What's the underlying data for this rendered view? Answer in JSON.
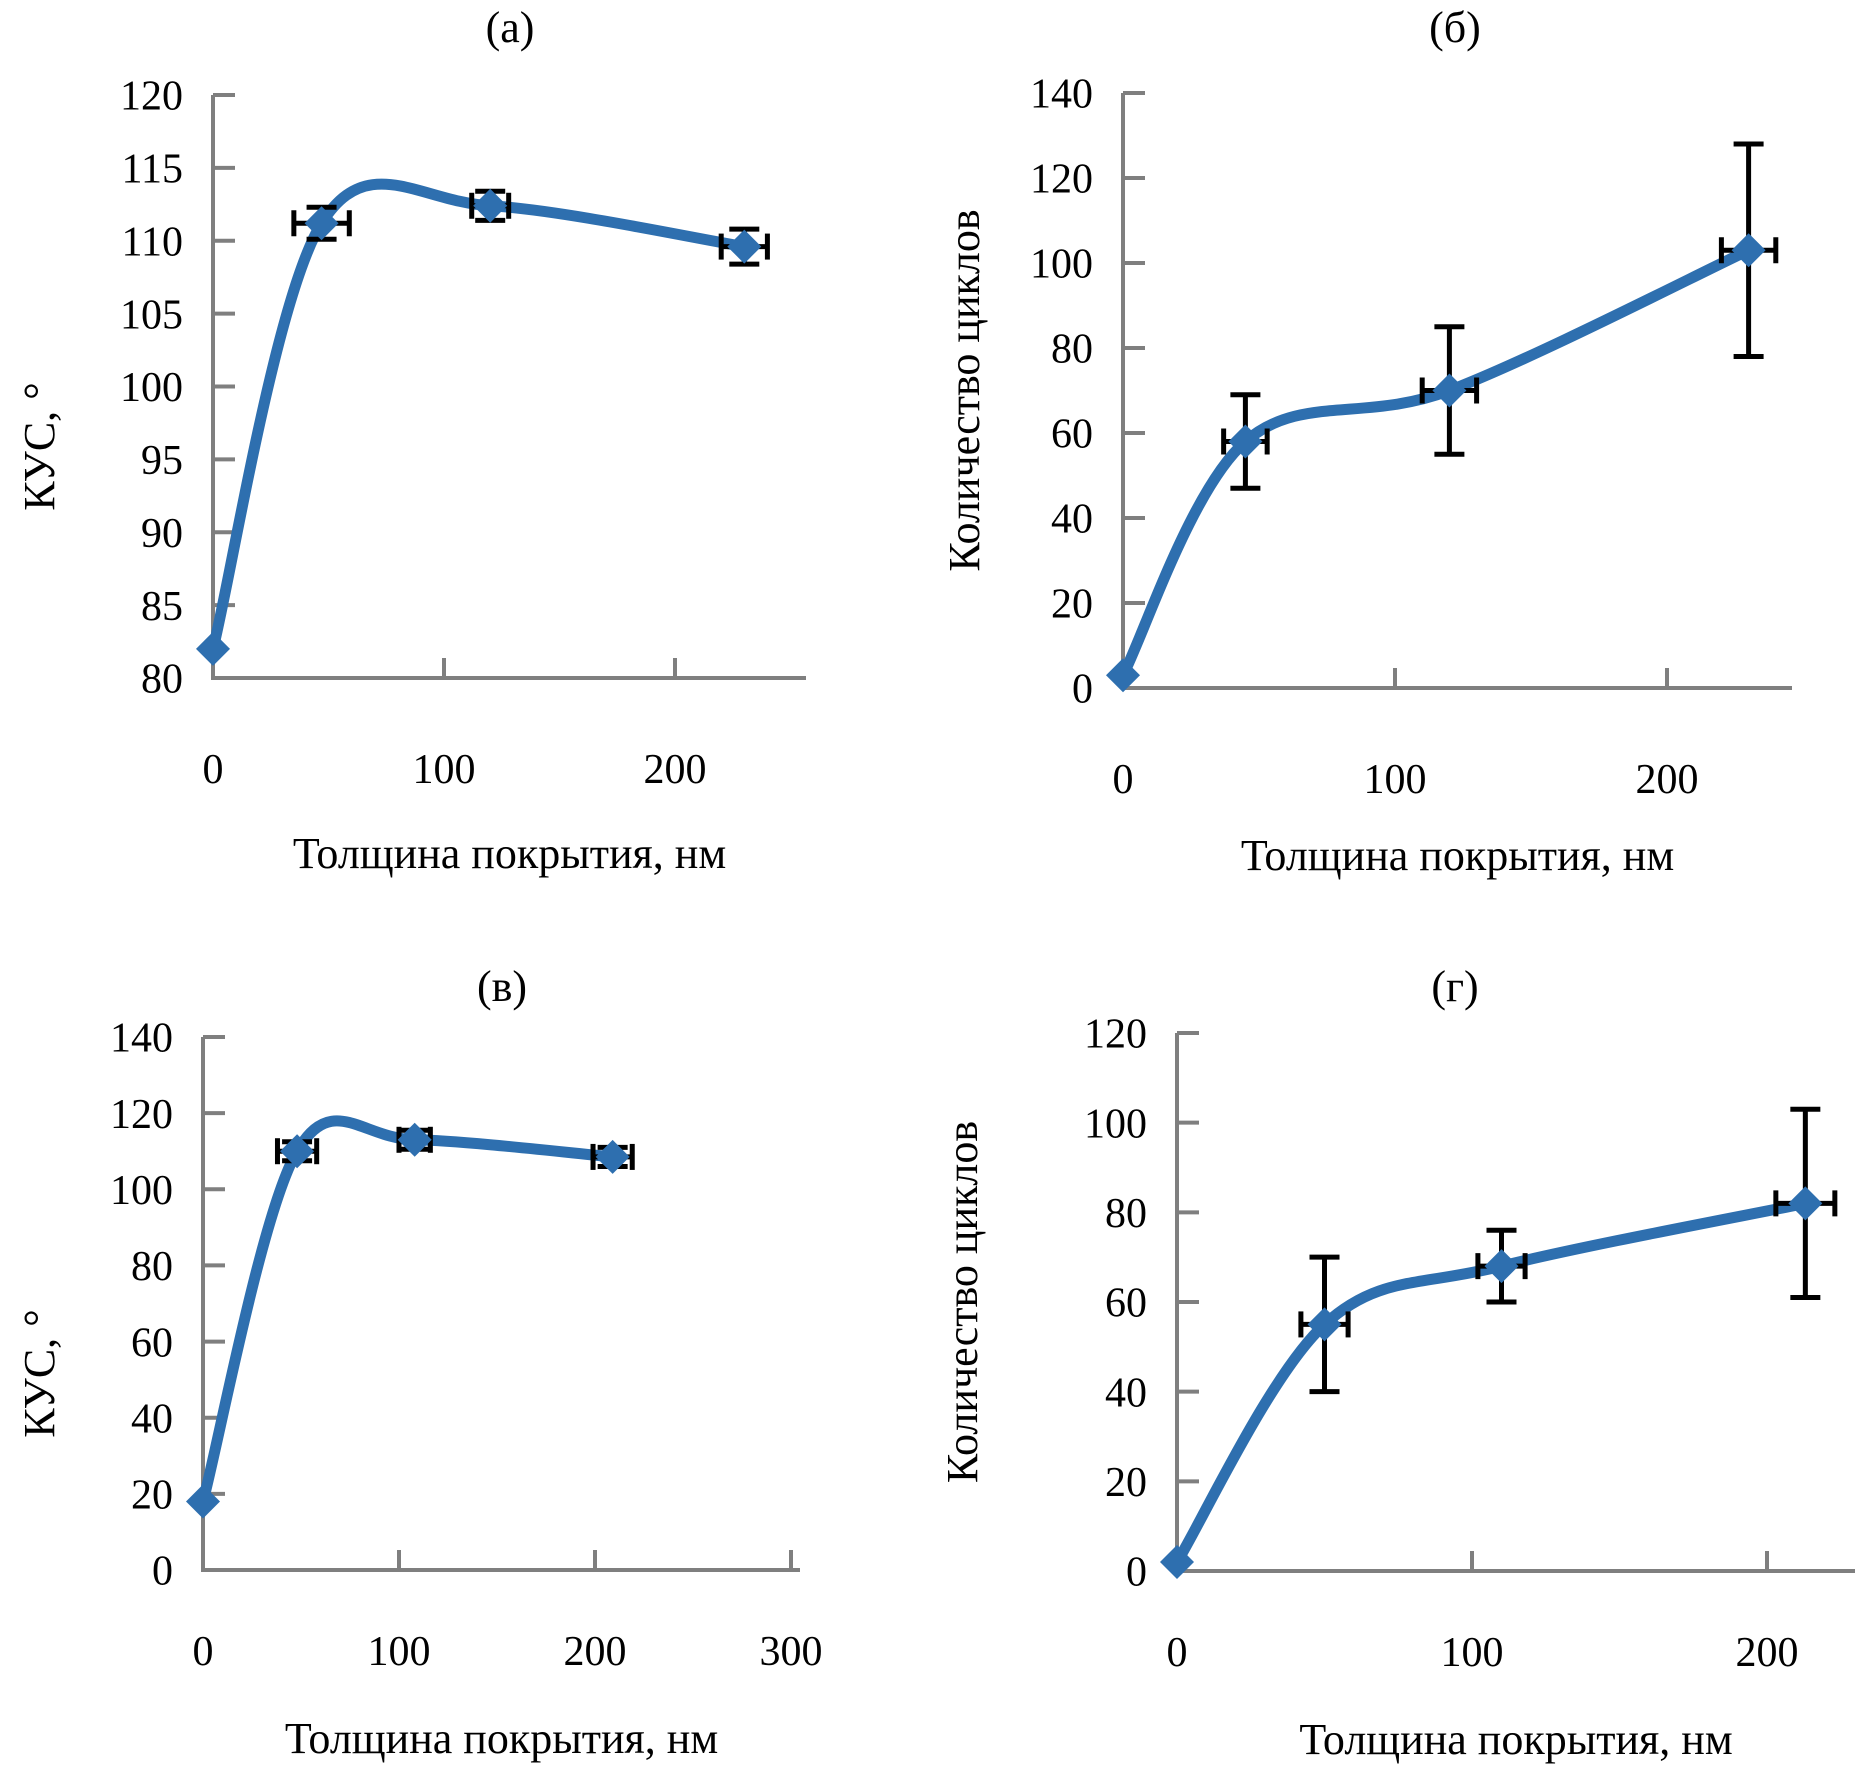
{
  "figure": {
    "description": "Four-panel scientific figure: contact angle and cycle count vs coating thickness",
    "panel_labels": [
      "(а)",
      "(б)",
      "(в)",
      "(г)"
    ]
  },
  "style": {
    "line_color": "#2e6faf",
    "marker_color": "#2e6faf",
    "error_color": "#000000",
    "axis_color": "#7f7f7f",
    "text_color": "#000000"
  },
  "chart_data": [
    {
      "id": "a",
      "type": "line",
      "title": "(а)",
      "xlabel": "Толщина покрытия, нм",
      "ylabel": "КУС, °",
      "x": [
        0,
        47,
        120,
        230
      ],
      "y": [
        82,
        111.2,
        112.4,
        109.6
      ],
      "xerr": [
        0,
        12,
        8,
        10
      ],
      "yerr": [
        0,
        1.1,
        1.0,
        1.2
      ],
      "xticks": [
        0,
        100,
        200
      ],
      "yticks": [
        80,
        85,
        90,
        95,
        100,
        105,
        110,
        115,
        120
      ],
      "ylim": [
        80,
        120
      ],
      "grid": false,
      "legend": null,
      "marker": "diamond"
    },
    {
      "id": "b",
      "type": "line",
      "title": "(б)",
      "xlabel": "Толщина покрытия, нм",
      "ylabel": "Количество циклов",
      "x": [
        0,
        45,
        120,
        230
      ],
      "y": [
        3,
        58,
        70,
        103
      ],
      "xerr": [
        0,
        8,
        10,
        10
      ],
      "yerr": [
        0,
        11,
        15,
        25
      ],
      "xticks": [
        0,
        100,
        200
      ],
      "yticks": [
        0,
        20,
        40,
        60,
        80,
        100,
        120,
        140
      ],
      "ylim": [
        0,
        140
      ],
      "grid": false,
      "legend": null,
      "marker": "diamond"
    },
    {
      "id": "v",
      "type": "line",
      "title": "(в)",
      "xlabel": "Толщина покрытия, нм",
      "ylabel": "КУС, °",
      "x": [
        0,
        48,
        108,
        209
      ],
      "y": [
        18,
        110,
        113,
        108.5
      ],
      "xerr": [
        0,
        10,
        8,
        10
      ],
      "yerr": [
        0,
        2.5,
        2.5,
        2.5
      ],
      "xticks": [
        0,
        100,
        200,
        300
      ],
      "yticks": [
        0,
        20,
        40,
        60,
        80,
        100,
        120,
        140
      ],
      "ylim": [
        0,
        140
      ],
      "grid": false,
      "legend": null,
      "marker": "diamond"
    },
    {
      "id": "g",
      "type": "line",
      "title": "(г)",
      "xlabel": "Толщина покрытия, нм",
      "ylabel": "Количество циклов",
      "x": [
        0,
        50,
        110,
        213
      ],
      "y": [
        2,
        55,
        68,
        82
      ],
      "xerr": [
        0,
        8,
        8,
        10
      ],
      "yerr": [
        0,
        15,
        8,
        21
      ],
      "xticks": [
        0,
        100,
        200
      ],
      "yticks": [
        0,
        20,
        40,
        60,
        80,
        100,
        120
      ],
      "ylim": [
        0,
        120
      ],
      "grid": false,
      "legend": null,
      "marker": "diamond"
    }
  ]
}
